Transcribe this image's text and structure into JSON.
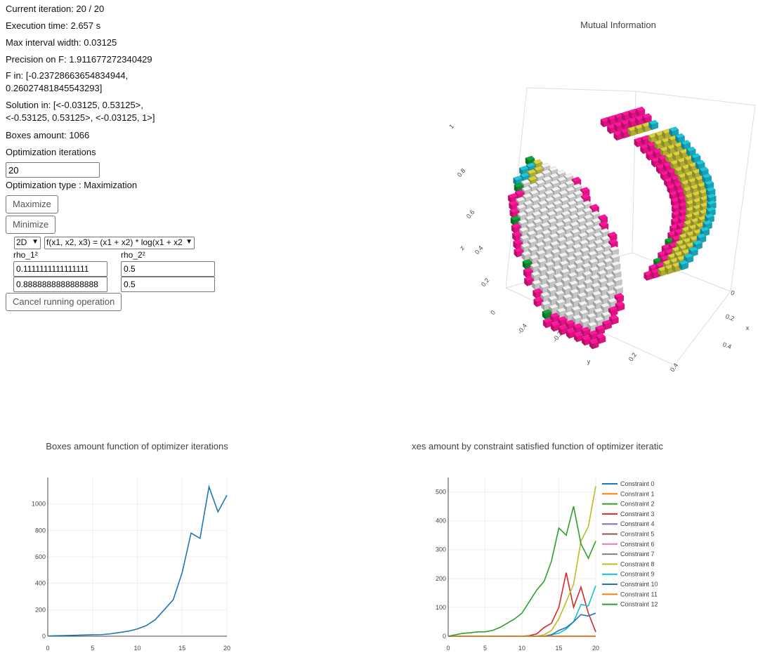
{
  "status": {
    "iteration": "Current iteration: 20 / 20",
    "execution_time": "Execution time: 2.657 s",
    "max_interval": "Max interval width: 0.03125",
    "precision": "Precision on F: 1.911677272340429",
    "f_in": "F in: [-0.23728663654834944, 0.26027481845543293]",
    "solution_in": "Solution in: [<-0.03125, 0.53125>, <-0.53125, 0.53125>, <-0.03125, 1>]",
    "boxes_amount": "Boxes amount: 1066"
  },
  "controls": {
    "opt_iterations_label": "Optimization iterations",
    "opt_iterations_value": "20",
    "opt_type": "Optimization type : Maximization",
    "maximize_label": "Maximize",
    "minimize_label": "Minimize",
    "dimension_selected": "2D",
    "function_selected": "f(x1, x2, x3) = (x1 + x2) * log(x1 + x2",
    "rho1_label": "rho_1²",
    "rho2_label": "rho_2²",
    "rho1_values": [
      "0.1111111111111111",
      "0.8888888888888888"
    ],
    "rho2_values": [
      "0.5",
      "0.5"
    ],
    "cancel_label": "Cancel running operation"
  },
  "scene3d": {
    "title": "Mutual Information",
    "axis_x": "x",
    "axis_y": "y",
    "axis_z": "z",
    "x_ticks": [
      "0",
      "0.2",
      "0.4"
    ],
    "y_ticks": [
      "-0.4",
      "-0.2",
      "0",
      "0.2",
      "0.4"
    ],
    "z_ticks": [
      "0",
      "0.2",
      "0.4",
      "0.6",
      "0.8",
      "1"
    ],
    "colors": {
      "magenta": "#ff1493",
      "olive": "#c8c23a",
      "cyan": "#1bb8cc",
      "green": "#119933",
      "gray": "#e0e0e0"
    }
  },
  "chart_data": [
    {
      "type": "line",
      "title": "Boxes amount function of optimizer iterations",
      "x": [
        0,
        1,
        2,
        3,
        4,
        5,
        6,
        7,
        8,
        9,
        10,
        11,
        12,
        13,
        14,
        15,
        16,
        17,
        18,
        19,
        20
      ],
      "series": [
        {
          "values": [
            2,
            4,
            5,
            7,
            9,
            11,
            12,
            18,
            28,
            38,
            55,
            80,
            125,
            200,
            275,
            480,
            780,
            740,
            1130,
            940,
            1066
          ],
          "color": "#1f77b4"
        }
      ],
      "xlim": [
        0,
        20
      ],
      "ylim": [
        0,
        1200
      ],
      "x_ticks": [
        0,
        5,
        10,
        15,
        20
      ],
      "y_ticks": [
        0,
        200,
        400,
        600,
        800,
        1000
      ],
      "grid": true
    },
    {
      "type": "line",
      "title": "xes amount by constraint satisfied function of optimizer iteratic",
      "x": [
        0,
        1,
        2,
        3,
        4,
        5,
        6,
        7,
        8,
        9,
        10,
        11,
        12,
        13,
        14,
        15,
        16,
        17,
        18,
        19,
        20
      ],
      "xlim": [
        0,
        20
      ],
      "ylim": [
        0,
        550
      ],
      "x_ticks": [
        0,
        5,
        10,
        15,
        20
      ],
      "y_ticks": [
        0,
        100,
        200,
        300,
        400,
        500
      ],
      "grid": true,
      "legend": "right",
      "series": [
        {
          "name": "Constraint 0",
          "color": "#1f77b4",
          "values": [
            0,
            0,
            0,
            0,
            0,
            0,
            0,
            0,
            0,
            0,
            0,
            0,
            0,
            0,
            0,
            0,
            0,
            0,
            0,
            0,
            0
          ]
        },
        {
          "name": "Constraint 1",
          "color": "#ff7f0e",
          "values": [
            0,
            0,
            0,
            0,
            0,
            0,
            0,
            0,
            0,
            0,
            0,
            0,
            0,
            0,
            0,
            0,
            0,
            0,
            0,
            0,
            0
          ]
        },
        {
          "name": "Constraint 2",
          "color": "#2ca02c",
          "values": [
            0,
            0,
            0,
            0,
            0,
            0,
            0,
            0,
            0,
            0,
            0,
            0,
            0,
            0,
            0,
            0,
            0,
            0,
            0,
            0,
            0
          ]
        },
        {
          "name": "Constraint 3",
          "color": "#d62728",
          "values": [
            0,
            0,
            0,
            0,
            0,
            0,
            0,
            0,
            0,
            0,
            0,
            2,
            8,
            30,
            45,
            100,
            220,
            100,
            170,
            80,
            15
          ]
        },
        {
          "name": "Constraint 4",
          "color": "#9467bd",
          "values": [
            0,
            0,
            0,
            0,
            0,
            0,
            0,
            0,
            0,
            0,
            0,
            0,
            0,
            0,
            0,
            0,
            0,
            0,
            0,
            0,
            0
          ]
        },
        {
          "name": "Constraint 5",
          "color": "#8c564b",
          "values": [
            0,
            0,
            0,
            0,
            0,
            0,
            0,
            0,
            0,
            0,
            0,
            0,
            0,
            0,
            0,
            0,
            0,
            0,
            0,
            0,
            0
          ]
        },
        {
          "name": "Constraint 6",
          "color": "#e377c2",
          "values": [
            0,
            0,
            0,
            0,
            0,
            0,
            0,
            0,
            0,
            0,
            0,
            0,
            0,
            0,
            0,
            0,
            0,
            0,
            0,
            0,
            0
          ]
        },
        {
          "name": "Constraint 7",
          "color": "#7f7f7f",
          "values": [
            0,
            0,
            0,
            0,
            0,
            0,
            0,
            0,
            0,
            0,
            0,
            0,
            0,
            0,
            0,
            0,
            0,
            0,
            0,
            0,
            0
          ]
        },
        {
          "name": "Constraint 8",
          "color": "#bcbd22",
          "values": [
            0,
            0,
            0,
            0,
            0,
            0,
            0,
            0,
            0,
            0,
            0,
            0,
            0,
            5,
            20,
            60,
            120,
            180,
            330,
            380,
            520
          ]
        },
        {
          "name": "Constraint 9",
          "color": "#17becf",
          "values": [
            0,
            0,
            0,
            0,
            0,
            0,
            0,
            0,
            0,
            0,
            0,
            0,
            0,
            0,
            5,
            10,
            25,
            50,
            110,
            105,
            175
          ]
        },
        {
          "name": "Constraint 10",
          "color": "#1f77b4",
          "values": [
            0,
            0,
            0,
            0,
            0,
            0,
            0,
            0,
            0,
            0,
            0,
            0,
            0,
            0,
            5,
            20,
            30,
            50,
            75,
            70,
            80
          ]
        },
        {
          "name": "Constraint 11",
          "color": "#ff7f0e",
          "values": [
            0,
            0,
            0,
            0,
            0,
            0,
            0,
            0,
            0,
            0,
            0,
            0,
            0,
            0,
            0,
            0,
            0,
            0,
            0,
            0,
            0
          ]
        },
        {
          "name": "Constraint 12",
          "color": "#2ca02c",
          "values": [
            0,
            5,
            10,
            12,
            15,
            15,
            20,
            30,
            45,
            60,
            80,
            120,
            160,
            190,
            260,
            375,
            350,
            450,
            320,
            270,
            330
          ]
        }
      ]
    }
  ]
}
